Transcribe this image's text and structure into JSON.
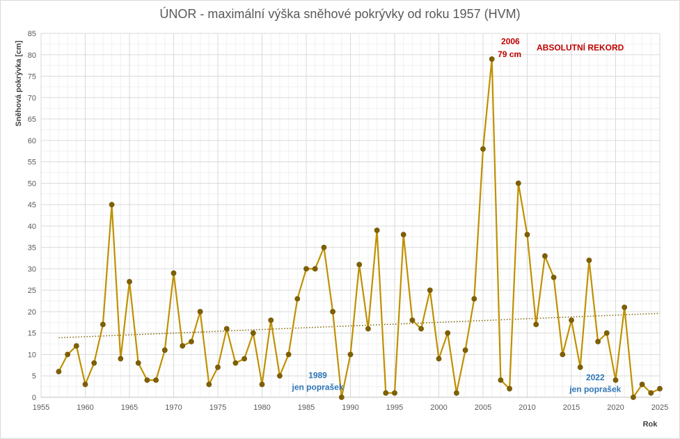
{
  "chart_data": {
    "type": "line",
    "title": "ÚNOR - maximální výška sněhové pokrývky od roku 1957 (HVM)",
    "xlabel": "Rok",
    "ylabel": "Sněhová pokrývka [cm]",
    "xlim": [
      1955,
      2025
    ],
    "ylim": [
      0,
      85
    ],
    "x_ticks": [
      1955,
      1960,
      1965,
      1970,
      1975,
      1980,
      1985,
      1990,
      1995,
      2000,
      2005,
      2010,
      2015,
      2020,
      2025
    ],
    "y_ticks": [
      0,
      5,
      10,
      15,
      20,
      25,
      30,
      35,
      40,
      45,
      50,
      55,
      60,
      65,
      70,
      75,
      80,
      85
    ],
    "grid": true,
    "series_color": "#bf9000",
    "marker_color": "#7f6000",
    "trend_color": "#7f6000",
    "x": [
      1957,
      1958,
      1959,
      1960,
      1961,
      1962,
      1963,
      1964,
      1965,
      1966,
      1967,
      1968,
      1969,
      1970,
      1971,
      1972,
      1973,
      1974,
      1975,
      1976,
      1977,
      1978,
      1979,
      1980,
      1981,
      1982,
      1983,
      1984,
      1985,
      1986,
      1987,
      1988,
      1989,
      1990,
      1991,
      1992,
      1993,
      1994,
      1995,
      1996,
      1997,
      1998,
      1999,
      2000,
      2001,
      2002,
      2003,
      2004,
      2005,
      2006,
      2007,
      2008,
      2009,
      2010,
      2011,
      2012,
      2013,
      2014,
      2015,
      2016,
      2017,
      2018,
      2019,
      2020,
      2021,
      2022,
      2023,
      2024,
      2025
    ],
    "values": [
      6,
      10,
      12,
      3,
      8,
      17,
      45,
      9,
      27,
      8,
      4,
      4,
      11,
      29,
      12,
      13,
      20,
      3,
      7,
      16,
      8,
      9,
      15,
      3,
      18,
      5,
      10,
      23,
      30,
      30,
      35,
      20,
      0,
      10,
      31,
      16,
      39,
      1,
      1,
      38,
      18,
      16,
      25,
      9,
      15,
      1,
      11,
      23,
      58,
      79,
      4,
      2,
      50,
      38,
      17,
      33,
      28,
      10,
      18,
      7,
      32,
      13,
      15,
      4,
      21,
      0,
      3,
      1,
      2
    ],
    "trendline": {
      "x": [
        1957,
        2025
      ],
      "y": [
        13.9,
        19.6
      ]
    },
    "annotations": [
      {
        "text": "2006",
        "color": "#c00000",
        "x": 2008.1,
        "y": 82.5
      },
      {
        "text": "79 cm",
        "color": "#c00000",
        "x": 2008.0,
        "y": 79.5
      },
      {
        "text": "ABSOLUTNÍ REKORD",
        "color": "#c00000",
        "x": 2016.0,
        "y": 81.0
      },
      {
        "text": "1989",
        "color": "#2e75b6",
        "x": 1986.3,
        "y": 4.5
      },
      {
        "text": "jen poprašek",
        "color": "#2e75b6",
        "x": 1986.3,
        "y": 1.7
      },
      {
        "text": "2022",
        "color": "#2e75b6",
        "x": 2017.7,
        "y": 4.0
      },
      {
        "text": "jen poprašek",
        "color": "#2e75b6",
        "x": 2017.7,
        "y": 1.2
      }
    ]
  }
}
